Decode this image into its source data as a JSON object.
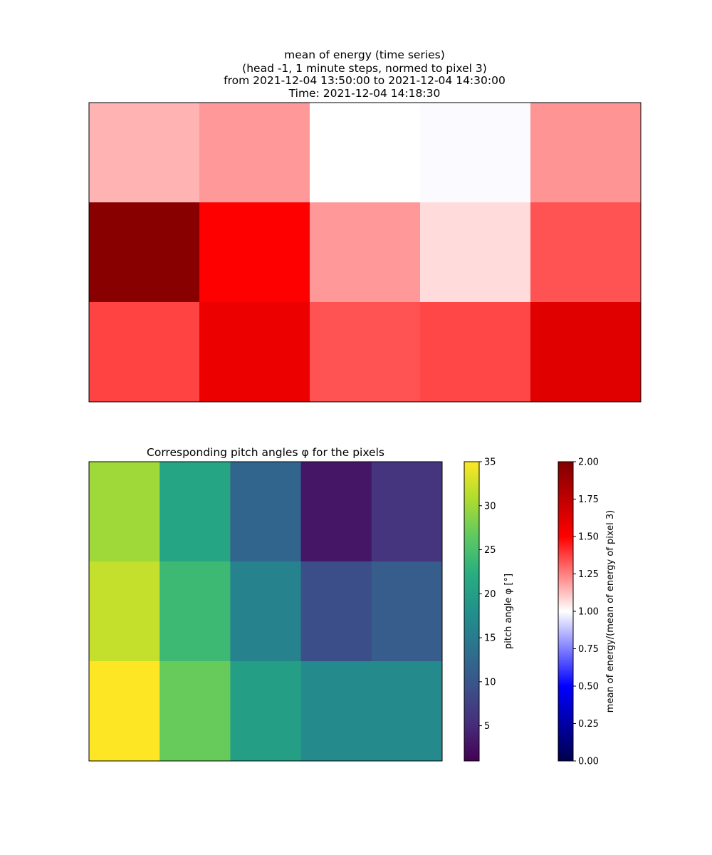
{
  "chart_data": [
    {
      "type": "heatmap",
      "title_lines": [
        "mean of energy (time series)",
        "(head -1, 1 minute steps, normed to pixel 3)",
        "from 2021-12-04 13:50:00 to 2021-12-04 14:30:00",
        "Time: 2021-12-04 14:18:30"
      ],
      "rows": 3,
      "cols": 5,
      "values": [
        [
          1.15,
          1.2,
          1.0,
          0.99,
          1.21
        ],
        [
          1.97,
          1.5,
          1.2,
          1.07,
          1.34
        ],
        [
          1.37,
          1.57,
          1.34,
          1.36,
          1.62
        ]
      ],
      "colormap": "seismic",
      "vmin": 0,
      "vmax": 2,
      "colorbar": {
        "label": "mean of energy/(mean of energy of pixel 3)",
        "ticks": [
          "0.00",
          "0.25",
          "0.50",
          "0.75",
          "1.00",
          "1.25",
          "1.50",
          "1.75",
          "2.00"
        ],
        "tick_values": [
          0,
          0.25,
          0.5,
          0.75,
          1.0,
          1.25,
          1.5,
          1.75,
          2.0
        ]
      }
    },
    {
      "type": "heatmap",
      "title": "Corresponding pitch angles φ for the pixels",
      "rows": 3,
      "cols": 5,
      "values": [
        [
          30,
          21,
          12,
          3,
          6
        ],
        [
          32,
          24,
          16,
          9,
          11
        ],
        [
          35,
          27,
          20,
          17,
          17
        ]
      ],
      "colormap": "viridis",
      "vmin": 1,
      "vmax": 35,
      "colorbar": {
        "label": "pitch angle φ [°]",
        "ticks": [
          "5",
          "10",
          "15",
          "20",
          "25",
          "30",
          "35"
        ],
        "tick_values": [
          5,
          10,
          15,
          20,
          25,
          30,
          35
        ]
      }
    }
  ]
}
